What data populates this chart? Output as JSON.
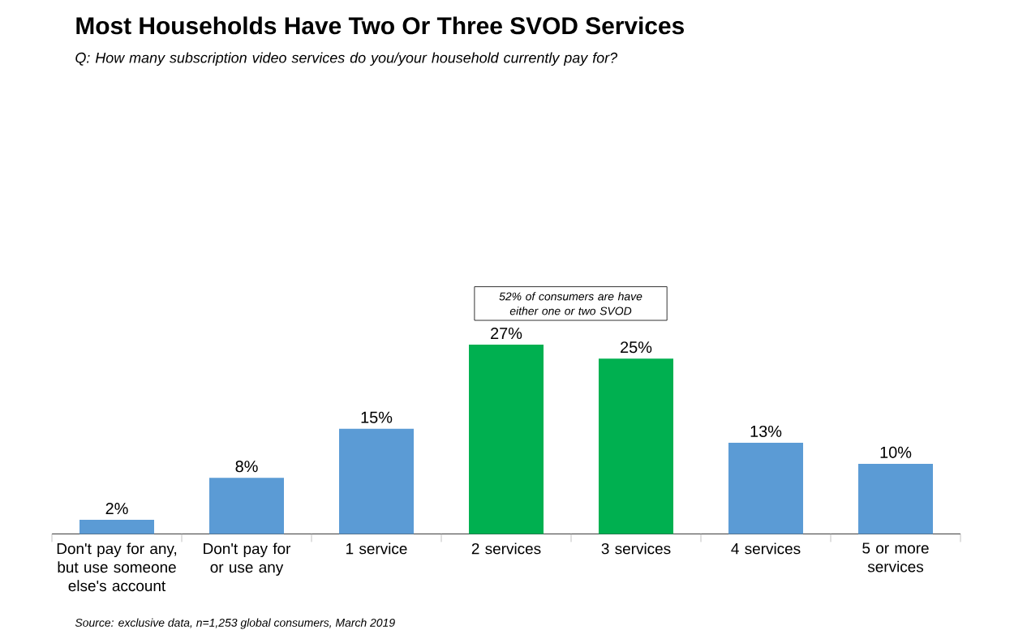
{
  "chart_data": {
    "type": "bar",
    "title": "Most Households Have Two Or Three SVOD Services",
    "subtitle": "Q: How many subscription video services do you/your household currently pay for?",
    "categories": [
      "Don't pay for any, but use someone else's account",
      "Don't pay for or use any",
      "1 service",
      "2 services",
      "3 services",
      "4 services",
      "5 or more services"
    ],
    "values": [
      2,
      8,
      15,
      27,
      25,
      13,
      10
    ],
    "value_labels": [
      "2%",
      "8%",
      "15%",
      "27%",
      "25%",
      "13%",
      "10%"
    ],
    "annotations": [
      "52% of consumers are have either one or two SVOD",
      "Source: exclusive data, n=1,253 global consumers, March 2019"
    ],
    "colors": [
      "#5b9bd5",
      "#5b9bd5",
      "#5b9bd5",
      "#00b050",
      "#00b050",
      "#5b9bd5",
      "#5b9bd5"
    ]
  }
}
